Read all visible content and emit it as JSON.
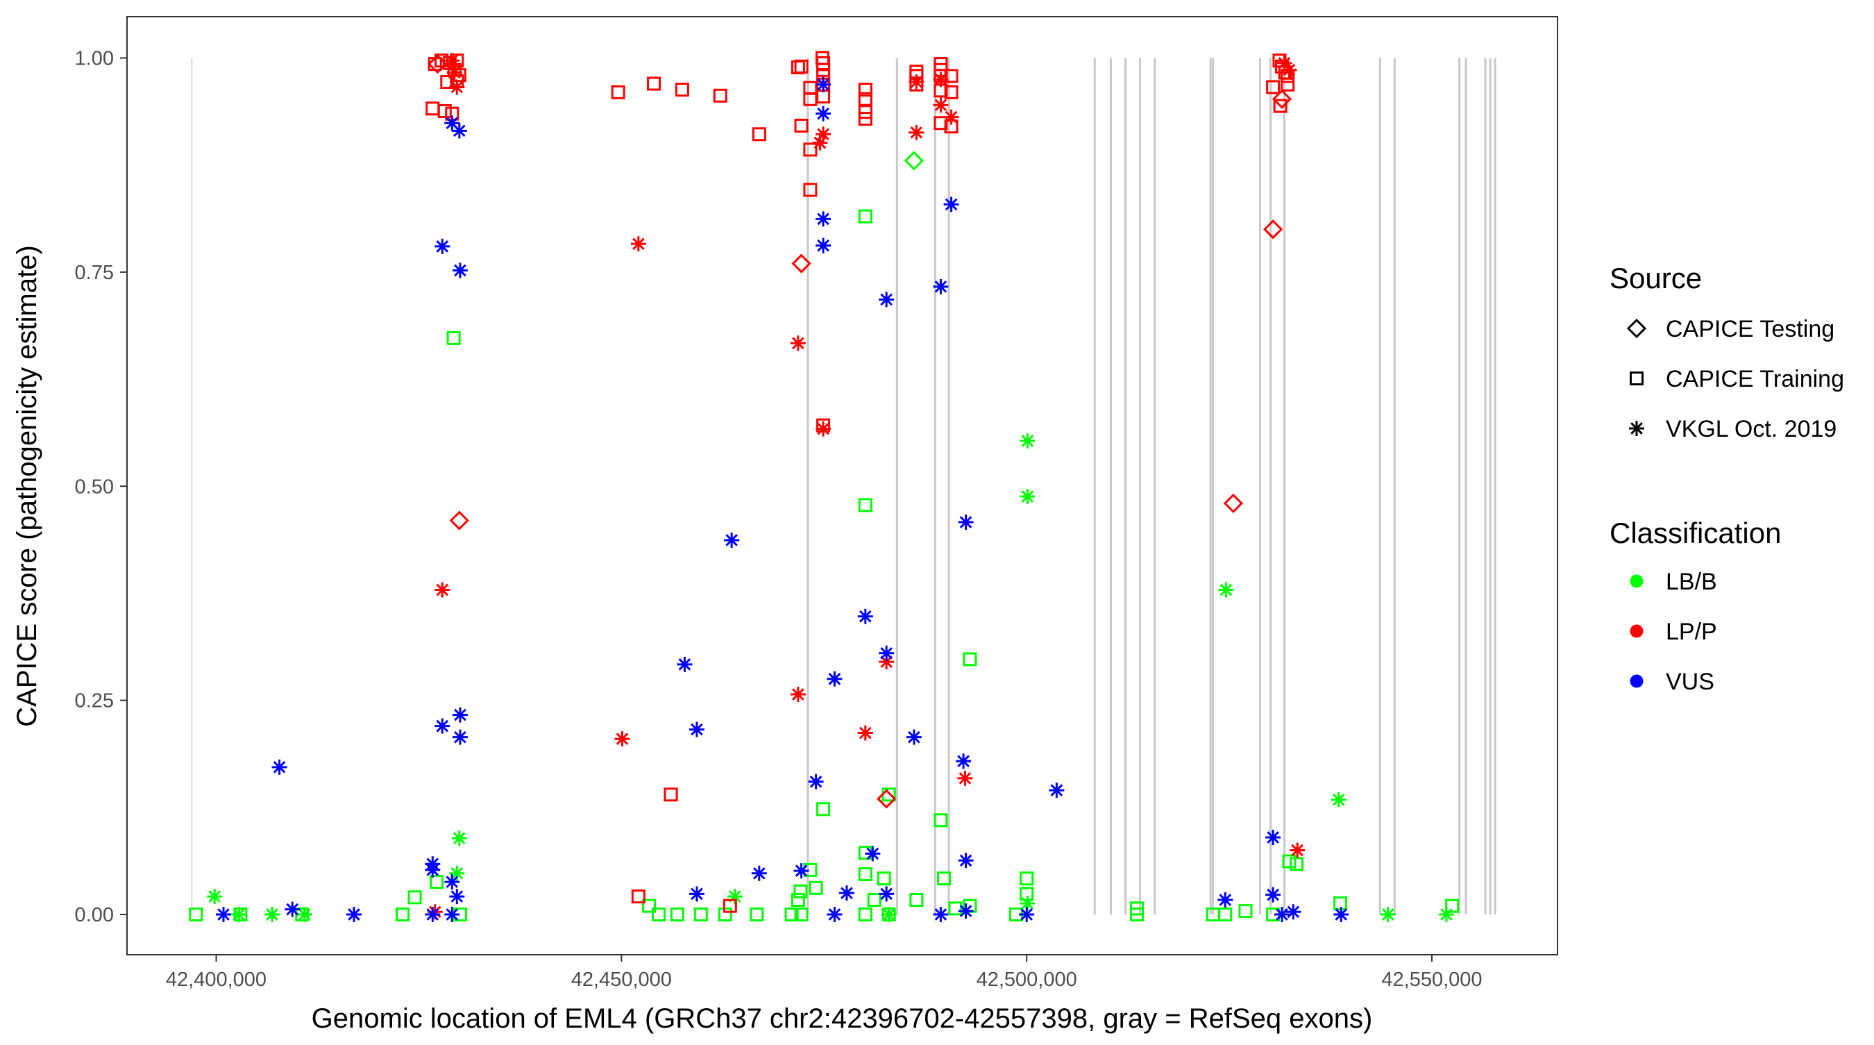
{
  "chart_data": {
    "type": "scatter",
    "title": "",
    "xlabel": "Genomic location of EML4 (GRCh37 chr2:42396702-42557398, gray = RefSeq exons)",
    "ylabel": "CAPICE score (pathogenicity estimate)",
    "xlim": [
      42392000,
      42560000
    ],
    "ylim": [
      -0.045,
      1.05
    ],
    "x_ticks": [
      42400000,
      42450000,
      42500000,
      42550000
    ],
    "x_tick_labels": [
      "42,400,000",
      "42,450,000",
      "42,500,000",
      "42,550,000"
    ],
    "y_ticks": [
      0,
      0.25,
      0.5,
      0.75,
      1.0
    ],
    "y_tick_labels": [
      "0.00",
      "0.25",
      "0.50",
      "0.75",
      "1.00"
    ],
    "grid": false,
    "exon_color": "#c8c8c8",
    "exon_positions": [
      42397000,
      42473000,
      42484000,
      42488700,
      42490400,
      42508400,
      42510400,
      42512200,
      42514000,
      42515800,
      42522700,
      42523000,
      42528800,
      42530100,
      42531800,
      42543600,
      42545400,
      42553400,
      42554200,
      42556600,
      42557200,
      42557800
    ],
    "legend": {
      "placement": "right",
      "source_title": "Source",
      "source_items": [
        {
          "label": "CAPICE Testing",
          "shape": "diamond"
        },
        {
          "label": "CAPICE Training",
          "shape": "square"
        },
        {
          "label": "VKGL Oct. 2019",
          "shape": "asterisk"
        }
      ],
      "class_title": "Classification",
      "class_items": [
        {
          "label": "LB/B",
          "color": "#00ff00"
        },
        {
          "label": "LP/P",
          "color": "#ff0000"
        },
        {
          "label": "VUS",
          "color": "#0000ff"
        }
      ]
    },
    "series": [
      {
        "class": "LB/B",
        "source": "CAPICE Training",
        "points": [
          [
            42429300,
            0.673
          ],
          [
            42480100,
            0.815
          ],
          [
            42480100,
            0.478
          ],
          [
            42493000,
            0.298
          ],
          [
            42483000,
            0.14
          ],
          [
            42474900,
            0.123
          ],
          [
            42489400,
            0.11
          ],
          [
            42489800,
            0.042
          ],
          [
            42480100,
            0.072
          ],
          [
            42480100,
            0.047
          ],
          [
            42482400,
            0.042
          ],
          [
            42473300,
            0.052
          ],
          [
            42472100,
            0.027
          ],
          [
            42500000,
            0.042
          ],
          [
            42500000,
            0.024
          ],
          [
            42513600,
            0.007
          ],
          [
            42527000,
            0.004
          ],
          [
            42532400,
            0.062
          ],
          [
            42533300,
            0.059
          ],
          [
            42538700,
            0.013
          ],
          [
            42552500,
            0.01
          ],
          [
            42424500,
            0.02
          ],
          [
            42423000,
            0
          ],
          [
            42427200,
            0.038
          ],
          [
            42397500,
            0
          ],
          [
            42403000,
            0
          ],
          [
            42410600,
            0
          ],
          [
            42453400,
            0.01
          ],
          [
            42454600,
            0
          ],
          [
            42456900,
            0
          ],
          [
            42459800,
            0
          ],
          [
            42462800,
            0
          ],
          [
            42466700,
            0
          ],
          [
            42471000,
            0
          ],
          [
            42471800,
            0.017
          ],
          [
            42474000,
            0.031
          ],
          [
            42481200,
            0.017
          ],
          [
            42486400,
            0.017
          ],
          [
            42491200,
            0.007
          ],
          [
            42493000,
            0.01
          ],
          [
            42498700,
            0
          ],
          [
            42523000,
            0
          ],
          [
            42524500,
            0
          ],
          [
            42530400,
            0
          ],
          [
            42472200,
            0
          ],
          [
            42480100,
            0
          ],
          [
            42483000,
            0
          ],
          [
            42430100,
            0
          ],
          [
            42513600,
            0
          ]
        ]
      },
      {
        "class": "LB/B",
        "source": "CAPICE Testing",
        "points": [
          [
            42486100,
            0.88
          ]
        ]
      },
      {
        "class": "LB/B",
        "source": "VKGL Oct. 2019",
        "points": [
          [
            42500100,
            0.553
          ],
          [
            42500100,
            0.488
          ],
          [
            42524600,
            0.379
          ],
          [
            42538500,
            0.134
          ],
          [
            42430000,
            0.089
          ],
          [
            42429700,
            0.048
          ],
          [
            42399800,
            0.021
          ],
          [
            42402800,
            0
          ],
          [
            42406900,
            0
          ],
          [
            42410900,
            0
          ],
          [
            42464000,
            0.021
          ],
          [
            42544600,
            0
          ],
          [
            42551800,
            0
          ],
          [
            42500100,
            0.013
          ],
          [
            42483000,
            0
          ]
        ]
      },
      {
        "class": "LP/P",
        "source": "CAPICE Training",
        "points": [
          [
            42427000,
            0.993
          ],
          [
            42427800,
            0.997
          ],
          [
            42428800,
            0.994
          ],
          [
            42429700,
            0.997
          ],
          [
            42429400,
            0.986
          ],
          [
            42430000,
            0.98
          ],
          [
            42428500,
            0.972
          ],
          [
            42429700,
            0.973
          ],
          [
            42426700,
            0.941
          ],
          [
            42428200,
            0.938
          ],
          [
            42429100,
            0.935
          ],
          [
            42449600,
            0.96
          ],
          [
            42454000,
            0.97
          ],
          [
            42457500,
            0.963
          ],
          [
            42462200,
            0.956
          ],
          [
            42467000,
            0.911
          ],
          [
            42456100,
            0.14
          ],
          [
            42452100,
            0.021
          ],
          [
            42471800,
            0.989
          ],
          [
            42472200,
            0.99
          ],
          [
            42473300,
            0.965
          ],
          [
            42473300,
            0.952
          ],
          [
            42472200,
            0.921
          ],
          [
            42473300,
            0.893
          ],
          [
            42473300,
            0.846
          ],
          [
            42474800,
            1.0
          ],
          [
            42474900,
            0.994
          ],
          [
            42474900,
            0.986
          ],
          [
            42474900,
            0.979
          ],
          [
            42474900,
            0.969
          ],
          [
            42474900,
            0.955
          ],
          [
            42474900,
            0.571
          ],
          [
            42480100,
            0.963
          ],
          [
            42480100,
            0.952
          ],
          [
            42480100,
            0.937
          ],
          [
            42480100,
            0.929
          ],
          [
            42486400,
            0.984
          ],
          [
            42486400,
            0.979
          ],
          [
            42486400,
            0.969
          ],
          [
            42489400,
            0.993
          ],
          [
            42489400,
            0.986
          ],
          [
            42489400,
            0.979
          ],
          [
            42489400,
            0.962
          ],
          [
            42489400,
            0.924
          ],
          [
            42490700,
            0.979
          ],
          [
            42490700,
            0.96
          ],
          [
            42490700,
            0.92
          ],
          [
            42530400,
            0.966
          ],
          [
            42531300,
            0.944
          ],
          [
            42531200,
            0.997
          ],
          [
            42531500,
            0.99
          ],
          [
            42531900,
            0.983
          ],
          [
            42532200,
            0.979
          ],
          [
            42532200,
            0.969
          ],
          [
            42463400,
            0.01
          ]
        ]
      },
      {
        "class": "LP/P",
        "source": "CAPICE Testing",
        "points": [
          [
            42427300,
            0.993
          ],
          [
            42430000,
            0.46
          ],
          [
            42472200,
            0.76
          ],
          [
            42482700,
            0.135
          ],
          [
            42531500,
            0.952
          ],
          [
            42530400,
            0.8
          ],
          [
            42525500,
            0.48
          ]
        ]
      },
      {
        "class": "LP/P",
        "source": "VKGL Oct. 2019",
        "points": [
          [
            42429100,
            0.997
          ],
          [
            42429400,
            0.983
          ],
          [
            42429700,
            0.966
          ],
          [
            42427900,
            0.379
          ],
          [
            42452100,
            0.783
          ],
          [
            42450100,
            0.205
          ],
          [
            42474900,
            0.911
          ],
          [
            42474500,
            0.901
          ],
          [
            42474900,
            0.567
          ],
          [
            42471800,
            0.667
          ],
          [
            42471800,
            0.257
          ],
          [
            42480100,
            0.212
          ],
          [
            42482700,
            0.295
          ],
          [
            42486400,
            0.972
          ],
          [
            42486400,
            0.913
          ],
          [
            42489400,
            0.975
          ],
          [
            42489400,
            0.945
          ],
          [
            42490700,
            0.931
          ],
          [
            42492400,
            0.159
          ],
          [
            42531800,
            0.994
          ],
          [
            42532400,
            0.986
          ],
          [
            42533400,
            0.075
          ],
          [
            42427000,
            0.003
          ]
        ]
      },
      {
        "class": "VUS",
        "source": "VKGL Oct. 2019",
        "points": [
          [
            42429100,
            0.924
          ],
          [
            42430000,
            0.915
          ],
          [
            42427900,
            0.78
          ],
          [
            42430100,
            0.752
          ],
          [
            42427900,
            0.22
          ],
          [
            42430100,
            0.233
          ],
          [
            42430100,
            0.207
          ],
          [
            42407800,
            0.172
          ],
          [
            42426700,
            0.059
          ],
          [
            42426700,
            0.052
          ],
          [
            42429100,
            0.038
          ],
          [
            42429700,
            0.021
          ],
          [
            42400900,
            0
          ],
          [
            42409400,
            0.006
          ],
          [
            42417000,
            0
          ],
          [
            42426700,
            0
          ],
          [
            42429100,
            0
          ],
          [
            42463600,
            0.437
          ],
          [
            42457800,
            0.292
          ],
          [
            42459300,
            0.216
          ],
          [
            42459300,
            0.024
          ],
          [
            42467000,
            0.048
          ],
          [
            42474900,
            0.969
          ],
          [
            42474900,
            0.935
          ],
          [
            42474900,
            0.812
          ],
          [
            42474900,
            0.781
          ],
          [
            42480100,
            0.348
          ],
          [
            42482700,
            0.305
          ],
          [
            42476300,
            0.275
          ],
          [
            42474000,
            0.155
          ],
          [
            42472200,
            0.051
          ],
          [
            42477800,
            0.025
          ],
          [
            42481000,
            0.071
          ],
          [
            42482700,
            0.024
          ],
          [
            42476300,
            0
          ],
          [
            42482700,
            0.718
          ],
          [
            42489400,
            0.733
          ],
          [
            42490700,
            0.829
          ],
          [
            42492500,
            0.458
          ],
          [
            42486100,
            0.207
          ],
          [
            42492200,
            0.179
          ],
          [
            42492500,
            0.063
          ],
          [
            42489400,
            0
          ],
          [
            42492500,
            0.004
          ],
          [
            42500000,
            0
          ],
          [
            42503700,
            0.145
          ],
          [
            42530400,
            0.09
          ],
          [
            42530400,
            0.023
          ],
          [
            42524500,
            0.017
          ],
          [
            42531500,
            0
          ],
          [
            42532900,
            0.003
          ],
          [
            42538800,
            0
          ]
        ]
      }
    ]
  }
}
